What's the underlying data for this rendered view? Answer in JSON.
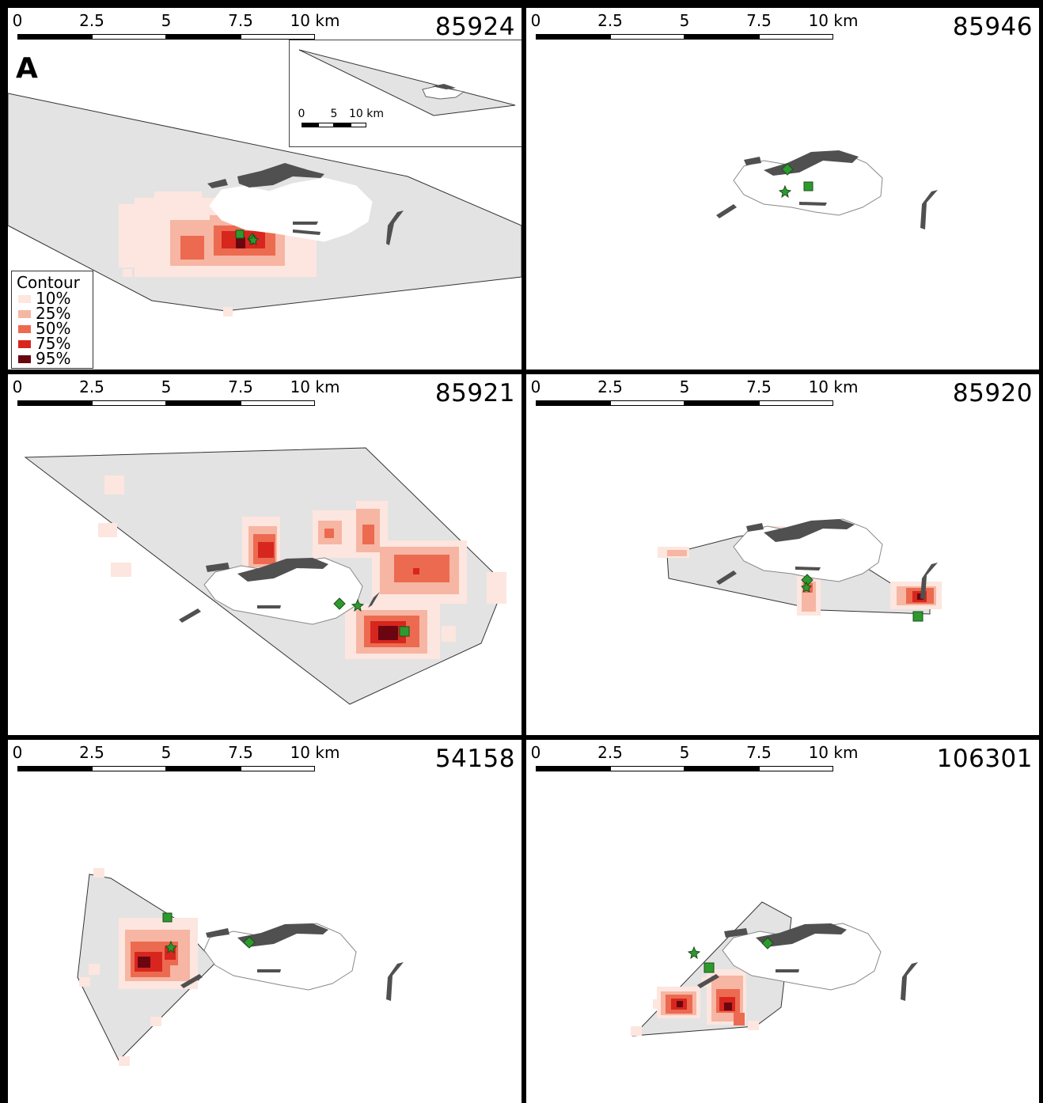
{
  "figure": {
    "panel_letter": "A",
    "scale_labels": [
      "0",
      "2.5",
      "5",
      "7.5",
      "10 km"
    ],
    "inset_scale_labels": [
      "0",
      "5",
      "10 km"
    ],
    "legend": {
      "title": "Contour",
      "items": [
        {
          "label": "10%",
          "color": "#fde6df"
        },
        {
          "label": "25%",
          "color": "#f6b6a3"
        },
        {
          "label": "50%",
          "color": "#ec6a50"
        },
        {
          "label": "75%",
          "color": "#d7261e"
        },
        {
          "label": "95%",
          "color": "#6b0610"
        }
      ]
    },
    "colors": {
      "range_polygon": "#e3e3e3",
      "island": "#ffffff",
      "island_dark": "#505050",
      "marker_fill": "#2e9a2e",
      "frame": "#000000"
    },
    "panels": [
      {
        "id": "85924",
        "markers": [
          "square",
          "diamond",
          "star"
        ]
      },
      {
        "id": "85946",
        "markers": [
          "diamond",
          "square",
          "star"
        ]
      },
      {
        "id": "85921",
        "markers": [
          "diamond",
          "star",
          "square"
        ]
      },
      {
        "id": "85920",
        "markers": [
          "diamond",
          "star",
          "square"
        ]
      },
      {
        "id": "54158",
        "markers": [
          "square",
          "star",
          "diamond"
        ]
      },
      {
        "id": "106301",
        "markers": [
          "star",
          "square",
          "diamond"
        ]
      }
    ]
  }
}
